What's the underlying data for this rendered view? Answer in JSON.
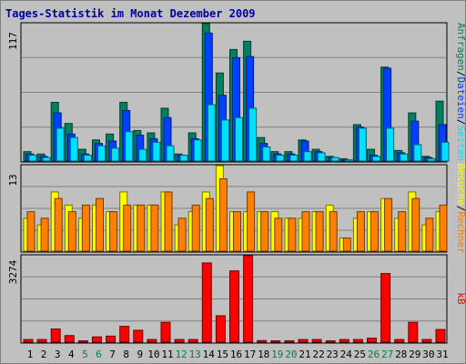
{
  "title": "Tages-Statistik im Monat Dezember 2009",
  "colors": {
    "background": "#c0c0c0",
    "panel": "#c0c0c0",
    "gridline": "#808080",
    "anfragen": "#008060",
    "dateien": "#0040ff",
    "seiten": "#00e0ff",
    "besuche": "#ffff00",
    "rechner": "#ff8000",
    "kb": "#ff0000",
    "weekend_label": "#008040",
    "weekday_label": "#000000",
    "separator": "#000000"
  },
  "chart_data": [
    {
      "type": "bar",
      "panel": "top",
      "ymax_label": "117",
      "ylim": [
        0,
        117
      ],
      "categories": [
        "1",
        "2",
        "3",
        "4",
        "5",
        "6",
        "7",
        "8",
        "9",
        "10",
        "11",
        "12",
        "13",
        "14",
        "15",
        "16",
        "17",
        "18",
        "19",
        "20",
        "21",
        "22",
        "23",
        "24",
        "25",
        "26",
        "27",
        "28",
        "29",
        "30",
        "31"
      ],
      "series": [
        {
          "name": "Anfragen",
          "values": [
            8,
            6,
            50,
            32,
            10,
            18,
            23,
            50,
            26,
            24,
            45,
            6,
            24,
            117,
            75,
            95,
            102,
            20,
            8,
            8,
            18,
            10,
            4,
            2,
            31,
            10,
            80,
            9,
            41,
            4,
            51
          ]
        },
        {
          "name": "Dateien",
          "values": [
            6,
            4,
            41,
            23,
            6,
            15,
            17,
            43,
            22,
            19,
            37,
            5,
            19,
            109,
            56,
            88,
            89,
            15,
            6,
            6,
            17,
            8,
            3,
            1,
            29,
            5,
            79,
            7,
            34,
            3,
            31
          ]
        },
        {
          "name": "Seiten",
          "values": [
            5,
            3,
            28,
            20,
            5,
            13,
            11,
            25,
            10,
            16,
            13,
            5,
            18,
            48,
            35,
            37,
            45,
            12,
            5,
            5,
            8,
            7,
            3,
            1,
            28,
            4,
            28,
            6,
            14,
            2,
            16
          ]
        }
      ]
    },
    {
      "type": "bar",
      "panel": "middle",
      "ymax_label": "13",
      "ylim": [
        0,
        13
      ],
      "categories": [
        "1",
        "2",
        "3",
        "4",
        "5",
        "6",
        "7",
        "8",
        "9",
        "10",
        "11",
        "12",
        "13",
        "14",
        "15",
        "16",
        "17",
        "18",
        "19",
        "20",
        "21",
        "22",
        "23",
        "24",
        "25",
        "26",
        "27",
        "28",
        "29",
        "30",
        "31"
      ],
      "series": [
        {
          "name": "Besuche",
          "values": [
            5,
            4,
            9,
            7,
            5,
            7,
            6,
            9,
            7,
            7,
            9,
            4,
            6,
            9,
            13,
            6,
            6,
            6,
            6,
            5,
            5,
            6,
            7,
            2,
            5,
            6,
            8,
            5,
            9,
            4,
            6
          ]
        },
        {
          "name": "Rechner",
          "values": [
            6,
            5,
            8,
            6,
            7,
            8,
            6,
            7,
            7,
            7,
            9,
            5,
            7,
            8,
            11,
            6,
            9,
            6,
            5,
            5,
            6,
            6,
            6,
            2,
            6,
            6,
            8,
            6,
            8,
            5,
            7
          ]
        }
      ]
    },
    {
      "type": "bar",
      "panel": "bottom",
      "ymax_label": "3274",
      "ylim": [
        0,
        3274
      ],
      "categories": [
        "1",
        "2",
        "3",
        "4",
        "5",
        "6",
        "7",
        "8",
        "9",
        "10",
        "11",
        "12",
        "13",
        "14",
        "15",
        "16",
        "17",
        "18",
        "19",
        "20",
        "21",
        "22",
        "23",
        "24",
        "25",
        "26",
        "27",
        "28",
        "29",
        "30",
        "31"
      ],
      "series": [
        {
          "name": "kB",
          "values": [
            100,
            100,
            500,
            250,
            50,
            200,
            230,
            600,
            450,
            100,
            750,
            100,
            100,
            3000,
            1000,
            2700,
            3274,
            60,
            50,
            50,
            100,
            100,
            50,
            100,
            100,
            150,
            2600,
            100,
            750,
            100,
            480
          ]
        }
      ]
    }
  ],
  "legend_right": {
    "top": [
      {
        "text": "Anfragen",
        "color_key": "anfragen"
      },
      {
        "text": "/",
        "color_key": "separator"
      },
      {
        "text": "Dateien",
        "color_key": "dateien"
      },
      {
        "text": "/",
        "color_key": "separator"
      },
      {
        "text": "Seiten",
        "color_key": "seiten"
      }
    ],
    "middle": [
      {
        "text": "Besuche",
        "color_key": "besuche"
      },
      {
        "text": "/",
        "color_key": "separator"
      },
      {
        "text": "Rechner",
        "color_key": "rechner"
      }
    ],
    "bottom": [
      {
        "text": "kB",
        "color_key": "kb"
      }
    ]
  },
  "weekend_days": [
    "5",
    "6",
    "12",
    "13",
    "19",
    "20",
    "26",
    "27"
  ]
}
